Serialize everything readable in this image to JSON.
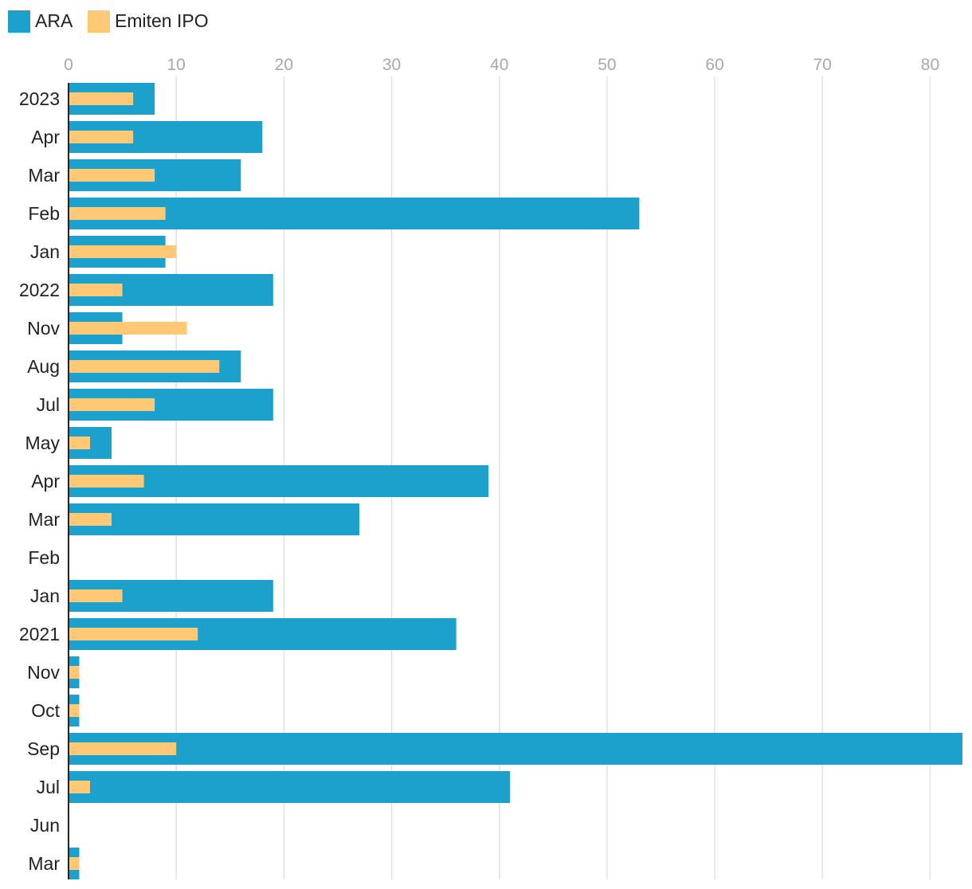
{
  "chart_data": {
    "type": "bar",
    "orientation": "horizontal",
    "legend_position": "top-left",
    "grid": true,
    "xlim": [
      0,
      83
    ],
    "x_ticks": [
      0,
      10,
      20,
      30,
      40,
      50,
      60,
      70,
      80
    ],
    "categories": [
      "2023",
      "Apr",
      "Mar",
      "Feb",
      "Jan",
      "2022",
      "Nov",
      "Aug",
      "Jul",
      "May",
      "Apr",
      "Mar",
      "Feb",
      "Jan",
      "2021",
      "Nov",
      "Oct",
      "Sep",
      "Jul",
      "Jun",
      "Mar"
    ],
    "series": [
      {
        "name": "ARA",
        "color": "#1ba1cc",
        "values": [
          8,
          18,
          16,
          53,
          9,
          19,
          5,
          16,
          19,
          4,
          39,
          27,
          0,
          19,
          36,
          1,
          1,
          83,
          41,
          0,
          1
        ]
      },
      {
        "name": "Emiten IPO",
        "color": "#fec875",
        "values": [
          6,
          6,
          8,
          9,
          10,
          5,
          11,
          14,
          8,
          2,
          7,
          4,
          0,
          5,
          12,
          1,
          1,
          10,
          2,
          0,
          1
        ]
      }
    ]
  }
}
